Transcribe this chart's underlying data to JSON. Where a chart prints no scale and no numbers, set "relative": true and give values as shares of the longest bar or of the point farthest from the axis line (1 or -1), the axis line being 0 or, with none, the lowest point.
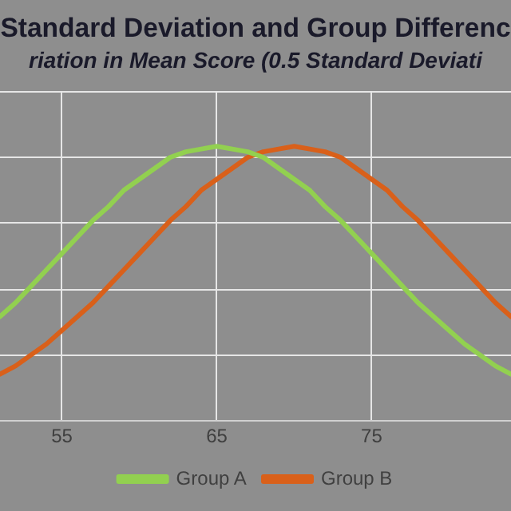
{
  "chart_data": {
    "type": "line",
    "title": "Standard Deviation and Group Differenc",
    "subtitle": "riation in Mean Score (0.5 Standard Deviati",
    "relative": true,
    "x": [
      51,
      52,
      53,
      54,
      55,
      56,
      57,
      58,
      59,
      60,
      61,
      62,
      63,
      64,
      65,
      66,
      67,
      68,
      69,
      70,
      71,
      72,
      73,
      74,
      75,
      76,
      77,
      78,
      79,
      80,
      81,
      82,
      83,
      84
    ],
    "xlim": [
      51,
      84
    ],
    "xticks": [
      55,
      65,
      75
    ],
    "grid": true,
    "legend": "bottom",
    "marker": "none",
    "line_style": "solid",
    "series": [
      {
        "name": "Group A",
        "color": "#92d050",
        "values": [
          0.38,
          0.43,
          0.49,
          0.55,
          0.61,
          0.67,
          0.73,
          0.78,
          0.84,
          0.88,
          0.92,
          0.96,
          0.98,
          0.99,
          1,
          0.99,
          0.98,
          0.96,
          0.92,
          0.88,
          0.84,
          0.78,
          0.73,
          0.67,
          0.61,
          0.55,
          0.49,
          0.43,
          0.38,
          0.33,
          0.28,
          0.24,
          0.2,
          0.17
        ]
      },
      {
        "name": "Group B",
        "color": "#d9601a",
        "values": [
          0.17,
          0.2,
          0.24,
          0.28,
          0.33,
          0.38,
          0.43,
          0.49,
          0.55,
          0.61,
          0.67,
          0.73,
          0.78,
          0.84,
          0.88,
          0.92,
          0.96,
          0.98,
          0.99,
          1,
          0.99,
          0.98,
          0.96,
          0.92,
          0.88,
          0.84,
          0.78,
          0.73,
          0.67,
          0.61,
          0.55,
          0.49,
          0.43,
          0.38
        ]
      }
    ]
  }
}
